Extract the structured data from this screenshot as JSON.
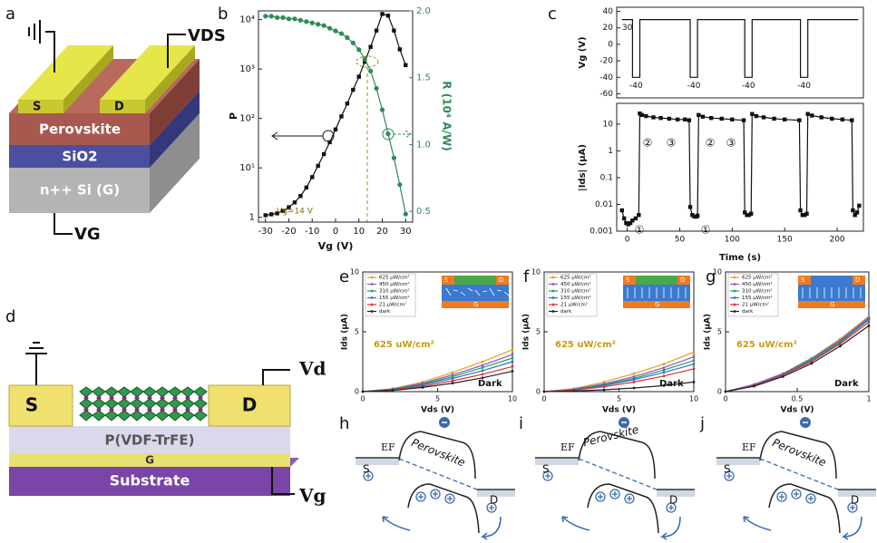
{
  "panel_labels": [
    "a",
    "b",
    "c",
    "d",
    "e",
    "f",
    "g",
    "h",
    "i",
    "j"
  ],
  "device_a": {
    "drain_voltage": "VDS",
    "source": "S",
    "drain": "D",
    "layers": [
      "Perovskite",
      "SiO2",
      "n++ Si (G)"
    ],
    "gate_voltage": "VG"
  },
  "device_d": {
    "source": "S",
    "drain": "D",
    "drain_voltage": "Vd",
    "layers": [
      "P(VDF-TrFE)",
      "G",
      "Substrate"
    ],
    "gate_voltage": "Vg"
  },
  "band_diagrams": [
    {
      "fermi": "EF",
      "source": "S",
      "drain": "D",
      "material": "Perovskite"
    },
    {
      "fermi": "EF",
      "source": "S",
      "drain": "D",
      "material": "Perovskite"
    },
    {
      "fermi": "EF",
      "source": "S",
      "drain": "D",
      "material": "Perovskite"
    }
  ],
  "chart_data": [
    {
      "type": "line",
      "x_label": "Vg (V)",
      "y_label": "P",
      "y2_label": "R (10⁴ A/W)",
      "y2_color": "#2e8b57",
      "annotations": [
        "Vg=14 V"
      ],
      "x": [
        -30,
        -27.5,
        -25,
        -22.5,
        -20,
        -17.5,
        -15,
        -12.5,
        -10,
        -7.5,
        -5,
        -2.5,
        0,
        2.5,
        5,
        7.5,
        10,
        12.5,
        15,
        17.5,
        20,
        22.5,
        25,
        27.5,
        30
      ],
      "xlim": [
        -33,
        33
      ],
      "xticks": [
        -30,
        -20,
        -10,
        0,
        10,
        20,
        30
      ],
      "ylog": true,
      "ylim": [
        0.8,
        15000
      ],
      "yticks": [
        1,
        {
          "value": 10,
          "label": "10¹"
        },
        {
          "value": 100,
          "label": "10²"
        },
        {
          "value": 1000,
          "label": "10³"
        },
        {
          "value": 10000,
          "label": "10⁴"
        }
      ],
      "y2lim": [
        0.42,
        2.0
      ],
      "y2ticks": [
        0.5,
        {
          "value": 1,
          "label": "1.0"
        },
        1.5,
        {
          "value": 2,
          "label": "2.0"
        }
      ],
      "series": [
        {
          "color": "#111111",
          "marker": "square",
          "values": [
            1.1,
            1.15,
            1.2,
            1.35,
            1.6,
            2,
            2.7,
            4,
            6.5,
            11,
            19,
            33,
            60,
            110,
            200,
            380,
            700,
            1400,
            2800,
            6000,
            13000,
            12000,
            6000,
            2500,
            1200
          ]
        },
        {
          "color": "#2e8b57",
          "marker": "circle",
          "axis": "y2",
          "values": [
            1.96,
            1.96,
            1.95,
            1.95,
            1.94,
            1.94,
            1.93,
            1.92,
            1.91,
            1.9,
            1.89,
            1.87,
            1.85,
            1.83,
            1.8,
            1.76,
            1.71,
            1.64,
            1.55,
            1.42,
            1.26,
            1.08,
            0.9,
            0.7,
            0.48
          ]
        }
      ]
    },
    {
      "type": "line",
      "y_label": "Vg (V)",
      "annotations": [
        "30",
        "-40",
        "-40",
        "-40",
        "-40"
      ],
      "x": [
        -5,
        5,
        5,
        12,
        12,
        60,
        60,
        67,
        67,
        112,
        112,
        119,
        119,
        165,
        165,
        172,
        172,
        220
      ],
      "xlim": [
        -10,
        225
      ],
      "ylim": [
        -65,
        45
      ],
      "yticks": [
        40,
        20,
        0,
        -20,
        -40,
        -60
      ],
      "series": [
        {
          "color": "#111111",
          "values": [
            30,
            30,
            -40,
            -40,
            30,
            30,
            -40,
            -40,
            30,
            30,
            -40,
            -40,
            30,
            30,
            -40,
            -40,
            30,
            30
          ]
        }
      ]
    },
    {
      "type": "line",
      "x_label": "Time (s)",
      "y_label": "|Ids| (μA)",
      "annotations": [
        "①",
        "②",
        "③",
        "①",
        "②",
        "③"
      ],
      "x": [
        -5,
        -3,
        -1,
        1,
        3,
        5,
        8,
        11,
        12,
        14,
        18,
        25,
        32,
        40,
        48,
        55,
        59,
        60,
        62,
        64,
        66,
        67,
        68,
        72,
        80,
        90,
        100,
        111,
        112,
        114,
        116,
        118,
        119,
        123,
        130,
        140,
        150,
        164,
        165,
        167,
        169,
        171,
        172,
        176,
        185,
        195,
        205,
        214,
        215,
        217,
        219,
        221
      ],
      "xlim": [
        -10,
        225
      ],
      "xticks": [
        0,
        50,
        100,
        150,
        200
      ],
      "ylog": true,
      "ylim": [
        0.001,
        60
      ],
      "yticks": [
        0.001,
        0.01,
        0.1,
        1,
        10
      ],
      "series": [
        {
          "color": "#111111",
          "marker": "square",
          "values": [
            0.006,
            0.003,
            0.002,
            0.0018,
            0.002,
            0.0025,
            0.003,
            0.004,
            25,
            22,
            20,
            18,
            17,
            16,
            15,
            15,
            14,
            0.008,
            0.004,
            0.0035,
            0.0035,
            0.0038,
            22,
            19,
            17,
            16,
            15,
            14,
            0.005,
            0.004,
            0.004,
            0.0045,
            24,
            20,
            18,
            16,
            15,
            14,
            0.006,
            0.004,
            0.004,
            0.0045,
            24,
            21,
            18,
            16,
            15,
            14,
            0.006,
            0.004,
            0.005,
            0.009
          ]
        }
      ]
    },
    {
      "type": "line",
      "x_label": "Vds (V)",
      "y_label": "Ids (μA)",
      "annotations": [
        "625 uW/cm²",
        "Dark"
      ],
      "inset": [
        "S",
        "D",
        "G"
      ],
      "legend": true,
      "x": [
        0,
        2,
        4,
        6,
        8,
        10
      ],
      "xlim": [
        0,
        10
      ],
      "xticks": [
        0,
        5,
        10
      ],
      "ylim": [
        0,
        10
      ],
      "yticks": [
        0,
        5,
        10
      ],
      "series": [
        {
          "name": "625 μW/cm²",
          "color": "#e0a020",
          "values": [
            0,
            0.25,
            0.8,
            1.6,
            2.5,
            3.5
          ]
        },
        {
          "name": "450 μW/cm²",
          "color": "#a050c0",
          "values": [
            0,
            0.22,
            0.7,
            1.4,
            2.2,
            3.1
          ]
        },
        {
          "name": "310 μW/cm²",
          "color": "#20a060",
          "values": [
            0,
            0.2,
            0.62,
            1.25,
            2.0,
            2.8
          ]
        },
        {
          "name": "155 μW/cm²",
          "color": "#3070d0",
          "values": [
            0,
            0.17,
            0.55,
            1.1,
            1.75,
            2.5
          ]
        },
        {
          "name": "21 μW/cm²",
          "color": "#e03030",
          "values": [
            0,
            0.14,
            0.45,
            0.9,
            1.45,
            2.1
          ]
        },
        {
          "name": "dark",
          "color": "#222222",
          "values": [
            0,
            0.1,
            0.35,
            0.7,
            1.15,
            1.7
          ]
        }
      ]
    },
    {
      "type": "line",
      "x_label": "Vds (V)",
      "y_label": "Ids (μA)",
      "annotations": [
        "625 uW/cm²",
        "Dark"
      ],
      "inset": [
        "S",
        "D",
        "G"
      ],
      "legend": true,
      "x": [
        0,
        2,
        4,
        6,
        8,
        10
      ],
      "xlim": [
        0,
        10
      ],
      "xticks": [
        0,
        5,
        10
      ],
      "ylim": [
        0,
        10
      ],
      "yticks": [
        0,
        5,
        10
      ],
      "series": [
        {
          "name": "625 μW/cm²",
          "color": "#e0a020",
          "values": [
            0,
            0.25,
            0.8,
            1.5,
            2.3,
            3.3
          ]
        },
        {
          "name": "450 μW/cm²",
          "color": "#a050c0",
          "values": [
            0,
            0.2,
            0.65,
            1.25,
            2.0,
            2.9
          ]
        },
        {
          "name": "310 μW/cm²",
          "color": "#20a060",
          "values": [
            0,
            0.18,
            0.58,
            1.1,
            1.8,
            2.6
          ]
        },
        {
          "name": "155 μW/cm²",
          "color": "#3070d0",
          "values": [
            0,
            0.15,
            0.5,
            1.0,
            1.6,
            2.3
          ]
        },
        {
          "name": "21 μW/cm²",
          "color": "#e03030",
          "values": [
            0,
            0.12,
            0.4,
            0.8,
            1.3,
            1.9
          ]
        },
        {
          "name": "dark",
          "color": "#222222",
          "values": [
            0,
            0.05,
            0.15,
            0.3,
            0.5,
            0.8
          ]
        }
      ]
    },
    {
      "type": "line",
      "x_label": "Vds (V)",
      "y_label": "Ids (μA)",
      "annotations": [
        "625 uW/cm²",
        "Dark"
      ],
      "inset": [
        "S",
        "D",
        "G"
      ],
      "legend": true,
      "x": [
        0,
        0.2,
        0.4,
        0.6,
        0.8,
        1
      ],
      "xlim": [
        0,
        1
      ],
      "xticks": [
        0,
        0.5,
        1
      ],
      "ylim": [
        0,
        10
      ],
      "yticks": [
        0,
        5,
        10
      ],
      "series": [
        {
          "name": "625 μW/cm²",
          "color": "#e0a020",
          "values": [
            0,
            0.6,
            1.5,
            2.8,
            4.4,
            6.3
          ]
        },
        {
          "name": "450 μW/cm²",
          "color": "#a050c0",
          "values": [
            0,
            0.6,
            1.5,
            2.75,
            4.3,
            6.2
          ]
        },
        {
          "name": "310 μW/cm²",
          "color": "#20a060",
          "values": [
            0,
            0.55,
            1.45,
            2.7,
            4.2,
            6.1
          ]
        },
        {
          "name": "155 μW/cm²",
          "color": "#3070d0",
          "values": [
            0,
            0.55,
            1.4,
            2.6,
            4.1,
            6.0
          ]
        },
        {
          "name": "21 μW/cm²",
          "color": "#e03030",
          "values": [
            0,
            0.5,
            1.35,
            2.5,
            4.0,
            5.8
          ]
        },
        {
          "name": "dark",
          "color": "#222222",
          "values": [
            0,
            0.45,
            1.25,
            2.35,
            3.8,
            5.5
          ]
        }
      ]
    }
  ]
}
